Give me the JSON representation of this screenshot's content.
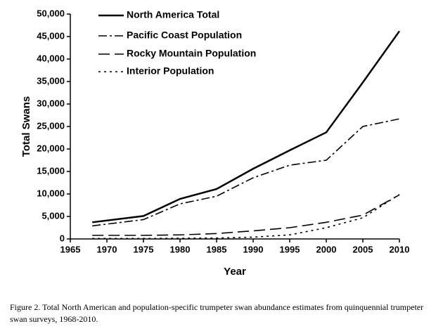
{
  "chart_data": {
    "type": "line",
    "x": [
      1968,
      1975,
      1980,
      1985,
      1990,
      1995,
      2000,
      2005,
      2010
    ],
    "series": [
      {
        "name": "North America Total",
        "color": "#000000",
        "linestyle": "solid",
        "values": [
          3700,
          5100,
          8900,
          11100,
          15600,
          19700,
          23700,
          34800,
          46200
        ]
      },
      {
        "name": "Pacific Coast Population",
        "color": "#000000",
        "linestyle": "dashdot",
        "values": [
          2900,
          4300,
          7800,
          9500,
          13600,
          16400,
          17500,
          25000,
          26700
        ]
      },
      {
        "name": "Rocky Mountain Population",
        "color": "#000000",
        "linestyle": "longdash",
        "values": [
          800,
          800,
          900,
          1200,
          1800,
          2500,
          3700,
          5300,
          9800
        ]
      },
      {
        "name": "Interior Population",
        "color": "#000000",
        "linestyle": "dotted",
        "values": [
          100,
          100,
          150,
          200,
          400,
          900,
          2500,
          4700,
          9900
        ]
      }
    ],
    "xlabel": "Year",
    "ylabel": "Total Swans",
    "xlim": [
      1965,
      2010
    ],
    "xticks": [
      1965,
      1970,
      1975,
      1980,
      1985,
      1990,
      1995,
      2000,
      2005,
      2010
    ],
    "ylim": [
      0,
      50000
    ],
    "yticks": [
      0,
      {
        "value": 5000,
        "label": "5,000"
      },
      {
        "value": 10000,
        "label": "10,000"
      },
      {
        "value": 15000,
        "label": "15,000"
      },
      {
        "value": 20000,
        "label": "20,000"
      },
      {
        "value": 25000,
        "label": "25,000"
      },
      {
        "value": 30000,
        "label": "30,000"
      },
      {
        "value": 35000,
        "label": "35,000"
      },
      {
        "value": 40000,
        "label": "40,000"
      },
      {
        "value": 45000,
        "label": "45,000"
      },
      {
        "value": 50000,
        "label": "50,000"
      }
    ],
    "legend": "upper-left",
    "grid": false
  },
  "caption": "Figure 2.  Total North American and population-specific trumpeter swan abundance estimates from quinquennial trumpeter swan surveys, 1968-2010."
}
